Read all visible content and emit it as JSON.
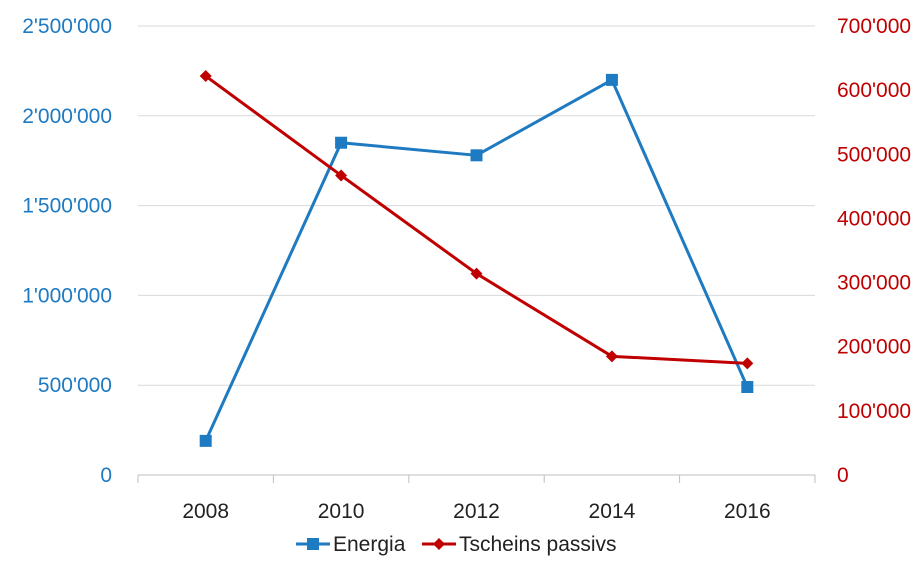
{
  "chart_data": {
    "type": "line",
    "title": "",
    "xlabel": "",
    "ylabel": "",
    "categories": [
      "2008",
      "2010",
      "2012",
      "2014",
      "2016"
    ],
    "y_left": {
      "lim": [
        0,
        2500000
      ],
      "ticks": [
        0,
        500000,
        1000000,
        1500000,
        2000000,
        2500000
      ],
      "tick_labels": [
        "0",
        "500'000",
        "1'000'000",
        "1'500'000",
        "2'000'000",
        "2'500'000"
      ],
      "color": "#1e7ac1"
    },
    "y_right": {
      "lim": [
        0,
        700000
      ],
      "ticks": [
        0,
        100000,
        200000,
        300000,
        400000,
        500000,
        600000,
        700000
      ],
      "tick_labels": [
        "0",
        "100'000",
        "200'000",
        "300'000",
        "400'000",
        "500'000",
        "600'000",
        "700'000"
      ],
      "color": "#c00000"
    },
    "series": [
      {
        "name": "Energia",
        "axis": "left",
        "color": "#1e7ac1",
        "marker": "square",
        "values": [
          190000,
          1850000,
          1780000,
          2200000,
          490000
        ]
      },
      {
        "name": "Tscheins passivs",
        "axis": "right",
        "color": "#c00000",
        "marker": "diamond",
        "values": [
          622000,
          467000,
          314000,
          185000,
          174000
        ]
      }
    ],
    "grid": true,
    "legend": "bottom"
  }
}
